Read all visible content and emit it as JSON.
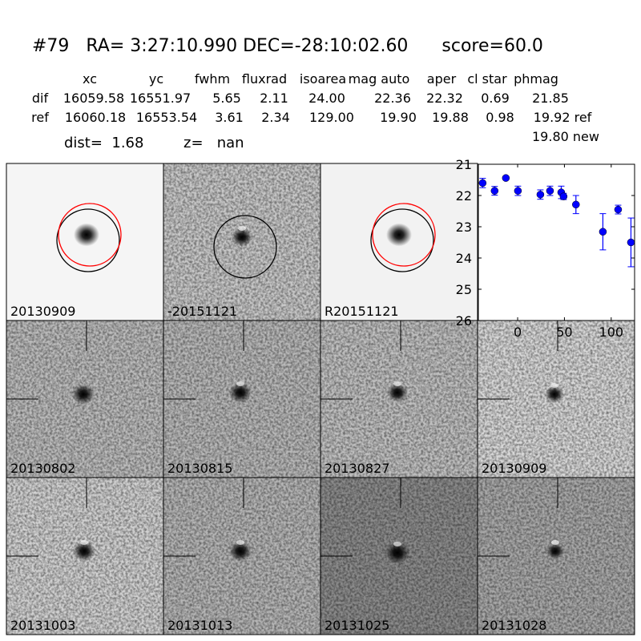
{
  "header": {
    "title": "#79   RA= 3:27:10.990 DEC=-28:10:02.60      score=60.0",
    "columns": [
      "xc",
      "yc",
      "fwhm",
      "fluxrad",
      "isoarea",
      "mag auto",
      "aper",
      "cl star",
      "phmag"
    ],
    "rows": [
      {
        "label": "dif",
        "values": [
          "16059.58",
          "16551.97",
          "5.65",
          "2.11",
          "24.00",
          "22.36",
          "22.32",
          "0.69",
          "21.85"
        ]
      },
      {
        "label": "ref",
        "values": [
          "16060.18",
          "16553.54",
          "3.61",
          "2.34",
          "129.00",
          "19.90",
          "19.88",
          "0.98",
          "19.92 ref"
        ]
      }
    ],
    "phmag_new": "19.80 new",
    "dist": "dist=  1.68",
    "z": "z=   nan"
  },
  "stamps": [
    {
      "label": "20130909",
      "bg": "#f5f5f5",
      "circles": [
        "black",
        "red"
      ]
    },
    {
      "label": "-20151121",
      "bg": "#c9c9c9",
      "circles": [
        "black"
      ]
    },
    {
      "label": "R20151121",
      "bg": "#f2f2f2",
      "circles": [
        "black",
        "red"
      ]
    },
    {
      "label": "20130802",
      "bg": "#bdbdbd",
      "crosshair": true
    },
    {
      "label": "20130815",
      "bg": "#b9b9b9",
      "crosshair": true
    },
    {
      "label": "20130827",
      "bg": "#c1c1c1",
      "crosshair": true
    },
    {
      "label": "20130909",
      "bg": "#d9d9d9",
      "crosshair": true,
      "label_color": "#ff0000"
    },
    {
      "label": "20131003",
      "bg": "#d2d2d2",
      "crosshair": true
    },
    {
      "label": "20131013",
      "bg": "#b6b6b6",
      "crosshair": true
    },
    {
      "label": "20131025",
      "bg": "#8c8c8c",
      "crosshair": true
    },
    {
      "label": "20131028",
      "bg": "#a9a9a9",
      "crosshair": true
    }
  ],
  "chart_data": {
    "type": "scatter",
    "error_bars": true,
    "color": "#0000ff",
    "xlim": [
      -42,
      125
    ],
    "ylim": [
      26,
      21
    ],
    "y_inverted": true,
    "xticks": [
      0,
      50,
      100
    ],
    "yticks": [
      21,
      22,
      23,
      24,
      25,
      26
    ],
    "x": [
      -37.4,
      -24.6,
      -12.6,
      0.3,
      24.3,
      34.6,
      46.6,
      49.1,
      62.3,
      91.1,
      107.4,
      121.1
    ],
    "y": [
      21.6,
      21.85,
      21.44,
      21.85,
      21.97,
      21.85,
      21.9,
      22.03,
      22.29,
      23.16,
      22.45,
      23.5
    ],
    "yerr": [
      0.15,
      0.14,
      0.05,
      0.15,
      0.15,
      0.15,
      0.2,
      0.1,
      0.29,
      0.58,
      0.14,
      0.78
    ]
  }
}
